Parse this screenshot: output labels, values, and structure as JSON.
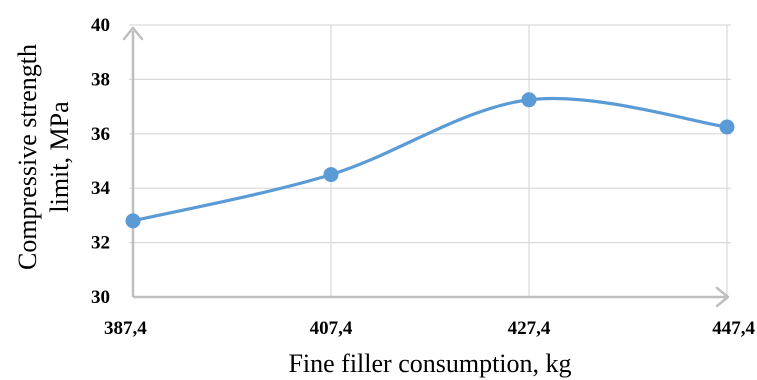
{
  "chart_data": {
    "type": "line",
    "title": "",
    "xlabel": "Fine filler consumption, kg",
    "ylabel_lines": [
      "Compressive strength",
      "limit, MPa"
    ],
    "categories": [
      "387,4",
      "407,4",
      "427,4",
      "447,4"
    ],
    "series": [
      {
        "values": [
          32.8,
          34.5,
          37.25,
          36.25
        ]
      }
    ],
    "ylim": [
      30,
      40
    ],
    "yticks": [
      30,
      32,
      34,
      36,
      38,
      40
    ],
    "ytick_labels": [
      "30",
      "32",
      "34",
      "36",
      "38",
      "40"
    ],
    "smooth": true,
    "grid": true,
    "legend": "none",
    "colors": {
      "series": "#5B9BD5",
      "grid": "#D9D9D9",
      "axis": "#BFBFBF"
    }
  }
}
